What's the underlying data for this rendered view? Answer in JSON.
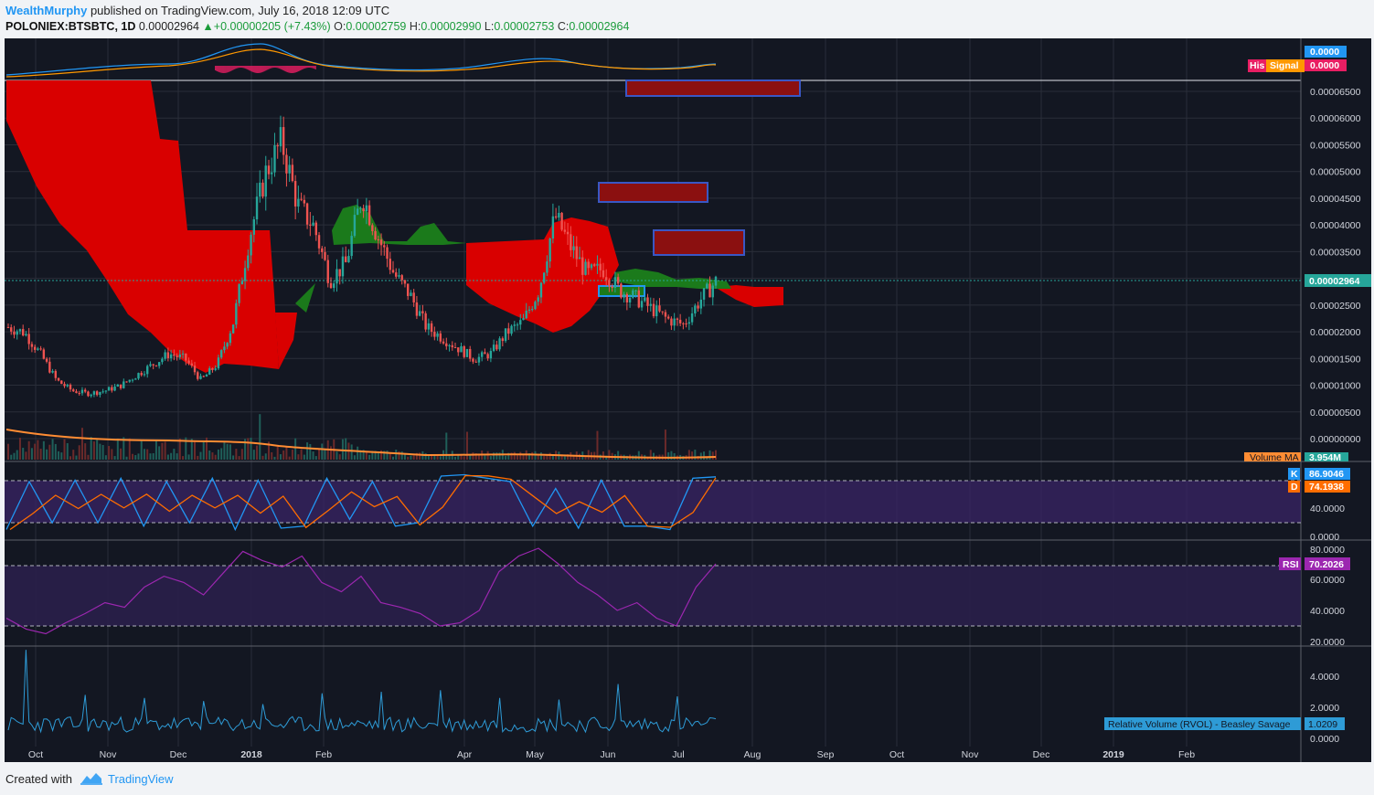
{
  "header": {
    "author": "WealthMurphy",
    "published_text": "published on TradingView.com, July 16, 2018 12:09 UTC",
    "symbol": "POLONIEX:BTSBTC, 1D",
    "last_price": "0.00002964",
    "change": "+0.00000205 (+7.43%)",
    "open_label": "O:",
    "open": "0.00002759",
    "high_label": "H:",
    "high": "0.00002990",
    "low_label": "L:",
    "low": "0.00002753",
    "close_label": "C:",
    "close": "0.00002964"
  },
  "footer": {
    "created_with": "Created with",
    "brand": "TradingView"
  },
  "colors": {
    "bg": "#131722",
    "grid": "#2a2e39",
    "up": "#26a69a",
    "down": "#ef5350",
    "cloud_bear": "#d90000",
    "cloud_bull": "#1b7a1b",
    "volume_ma": "#ff8c33",
    "stoch_k": "#2196f3",
    "stoch_d": "#ff6d00",
    "rsi": "#9c27b0",
    "rvol": "#2e9bd6"
  },
  "chart_data": {
    "type": "candlestick",
    "x_ticks": [
      "Oct",
      "Nov",
      "Dec",
      "2018",
      "Feb",
      "Apr",
      "May",
      "Jun",
      "Jul",
      "Aug",
      "Sep",
      "Oct",
      "Nov",
      "Dec",
      "2019",
      "Feb"
    ],
    "price_axis": [
      "0.00006500",
      "0.00006000",
      "0.00005500",
      "0.00005000",
      "0.00004500",
      "0.00004000",
      "0.00003500",
      "0.00003000",
      "0.00002500",
      "0.00002000",
      "0.00001500",
      "0.00001000",
      "0.00000500",
      "0.00000000"
    ],
    "ylim": [
      0.0,
      6.75e-05
    ],
    "last_price_tag": "0.00002964",
    "close_series": [
      2.1e-05,
      2e-05,
      1.6e-05,
      1.1e-05,
      9e-06,
      8.5e-06,
      9e-06,
      1e-05,
      1.2e-05,
      1.4e-05,
      1.6e-05,
      1.5e-05,
      1.1e-05,
      1.4e-05,
      2.2e-05,
      3.8e-05,
      5e-05,
      5.6e-05,
      4.4e-05,
      4e-05,
      3e-05,
      3.3e-05,
      4.6e-05,
      3.8e-05,
      3.1e-05,
      2.7e-05,
      2.1e-05,
      1.9e-05,
      1.7e-05,
      1.5e-05,
      1.6e-05,
      2e-05,
      2.2e-05,
      2.8e-05,
      4.2e-05,
      3.6e-05,
      3.1e-05,
      3.2e-05,
      2.8e-05,
      2.65e-05,
      2.45e-05,
      2.25e-05,
      2.15e-05,
      2.6e-05,
      2.96e-05
    ],
    "macd": {
      "labels": [
        "His",
        "Signal"
      ],
      "macd_value": "0.0000",
      "signal_value": "0.0000",
      "hist_value": "0.0000"
    },
    "volume": {
      "label": "Volume MA",
      "value": "3.954M"
    },
    "stoch": {
      "labels": [
        "K",
        "D"
      ],
      "k_value": "86.9046",
      "d_value": "74.1938",
      "axis": [
        "40.0000",
        "0.0000"
      ],
      "k_series": [
        10,
        80,
        20,
        82,
        20,
        85,
        15,
        80,
        20,
        85,
        10,
        82,
        12,
        15,
        85,
        25,
        80,
        15,
        20,
        88,
        90,
        85,
        80,
        15,
        70,
        12,
        82,
        15,
        15,
        10,
        85,
        87
      ]
    },
    "rsi": {
      "label": "RSI",
      "value": "70.2026",
      "axis": [
        "80.0000",
        "60.0000",
        "40.0000",
        "20.0000"
      ],
      "series": [
        35,
        28,
        25,
        32,
        38,
        45,
        42,
        55,
        62,
        58,
        50,
        64,
        78,
        72,
        68,
        75,
        58,
        52,
        62,
        45,
        42,
        38,
        30,
        32,
        40,
        65,
        75,
        80,
        70,
        58,
        50,
        40,
        45,
        35,
        30,
        55,
        70
      ]
    },
    "rvol": {
      "label": "Relative Volume (RVOL) - Beasley Savage",
      "value": "1.0209",
      "axis": [
        "4.0000",
        "2.0000",
        "0.0000"
      ],
      "spikes": [
        5.7,
        2.8,
        2.6,
        2.4,
        2.2,
        2.9,
        3.0,
        3.1,
        2.6,
        2.5,
        3.5,
        2.7
      ]
    }
  }
}
